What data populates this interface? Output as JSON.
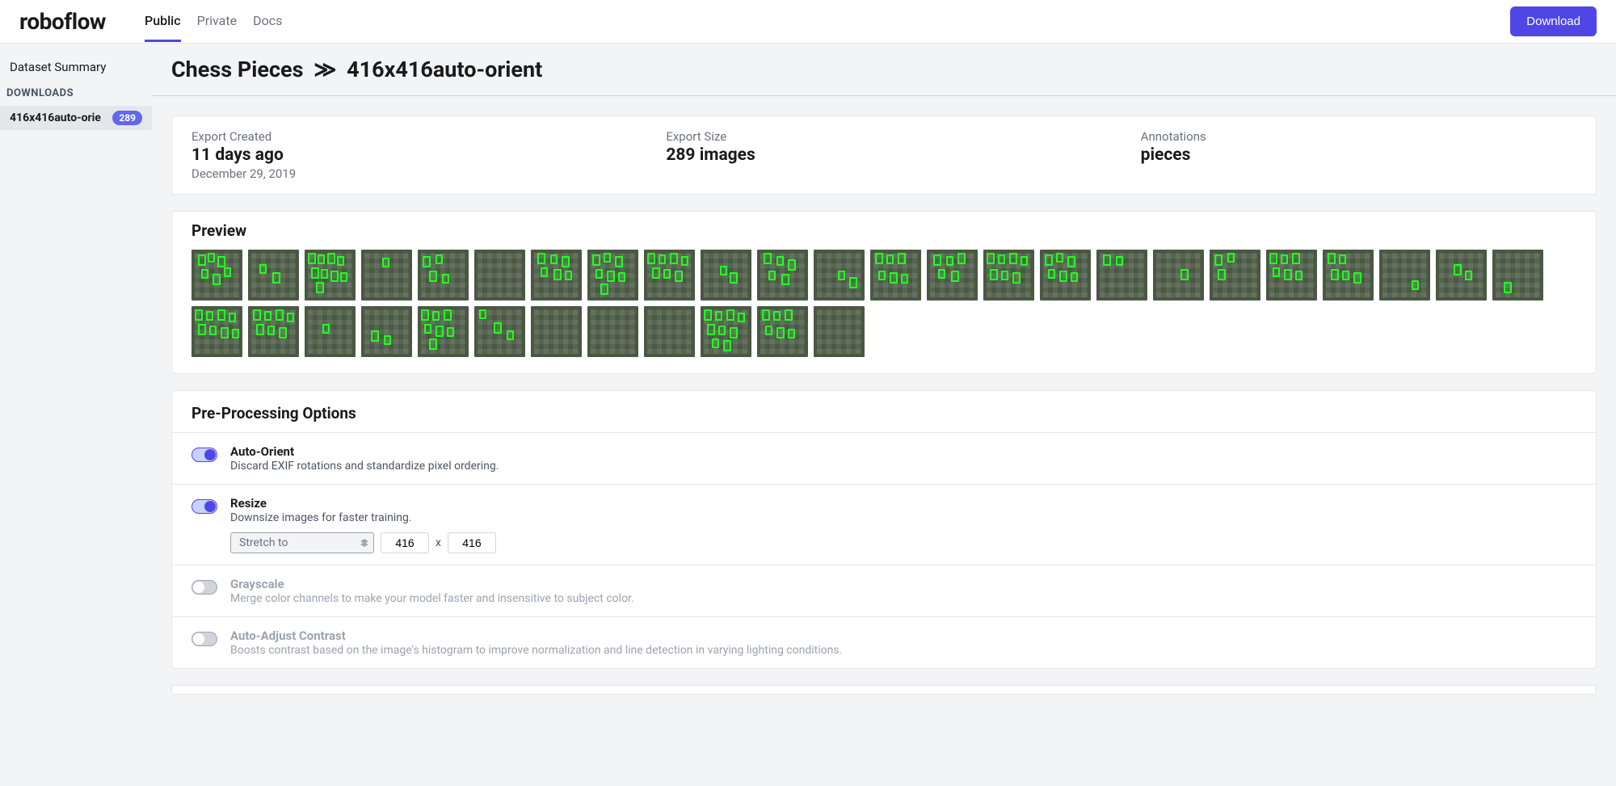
{
  "header": {
    "logo": "roboflow",
    "tabs": [
      {
        "label": "Public",
        "active": true
      },
      {
        "label": "Private",
        "active": false
      },
      {
        "label": "Docs",
        "active": false
      }
    ],
    "download_btn": "Download"
  },
  "sidebar": {
    "summary_label": "Dataset Summary",
    "downloads_heading": "DOWNLOADS",
    "download_item": {
      "label": "416x416auto-orie",
      "badge": "289"
    }
  },
  "title": {
    "dataset": "Chess Pieces",
    "separator": "≫",
    "export": "416x416auto-orient"
  },
  "summary": {
    "created": {
      "label": "Export Created",
      "value": "11 days ago",
      "sub": "December 29, 2019"
    },
    "size": {
      "label": "Export Size",
      "value": "289 images"
    },
    "annotations": {
      "label": "Annotations",
      "value": "pieces"
    }
  },
  "preview": {
    "title": "Preview",
    "thumbs": [
      [
        [
          8,
          6,
          10,
          14
        ],
        [
          20,
          4,
          9,
          12
        ],
        [
          32,
          8,
          10,
          14
        ],
        [
          12,
          24,
          9,
          12
        ],
        [
          26,
          30,
          10,
          14
        ],
        [
          40,
          22,
          9,
          12
        ]
      ],
      [
        [
          14,
          18,
          9,
          12
        ],
        [
          30,
          28,
          10,
          14
        ]
      ],
      [
        [
          4,
          4,
          10,
          14
        ],
        [
          16,
          6,
          9,
          12
        ],
        [
          28,
          4,
          10,
          14
        ],
        [
          40,
          8,
          9,
          12
        ],
        [
          8,
          22,
          10,
          14
        ],
        [
          20,
          24,
          9,
          12
        ],
        [
          32,
          26,
          10,
          14
        ],
        [
          44,
          28,
          9,
          12
        ],
        [
          14,
          40,
          10,
          14
        ]
      ],
      [
        [
          26,
          10,
          9,
          12
        ]
      ],
      [
        [
          6,
          8,
          10,
          14
        ],
        [
          22,
          6,
          9,
          12
        ],
        [
          14,
          26,
          10,
          14
        ],
        [
          30,
          30,
          9,
          12
        ]
      ],
      [],
      [
        [
          8,
          4,
          10,
          14
        ],
        [
          24,
          6,
          9,
          12
        ],
        [
          38,
          8,
          10,
          14
        ],
        [
          12,
          22,
          9,
          12
        ],
        [
          28,
          24,
          10,
          14
        ],
        [
          42,
          26,
          9,
          12
        ]
      ],
      [
        [
          6,
          6,
          10,
          14
        ],
        [
          20,
          4,
          9,
          12
        ],
        [
          34,
          8,
          10,
          14
        ],
        [
          10,
          24,
          9,
          12
        ],
        [
          24,
          26,
          10,
          14
        ],
        [
          38,
          28,
          9,
          12
        ],
        [
          16,
          42,
          10,
          14
        ]
      ],
      [
        [
          4,
          4,
          10,
          14
        ],
        [
          18,
          6,
          9,
          12
        ],
        [
          32,
          4,
          10,
          14
        ],
        [
          46,
          8,
          9,
          12
        ],
        [
          10,
          22,
          10,
          14
        ],
        [
          24,
          24,
          9,
          12
        ],
        [
          38,
          26,
          10,
          14
        ]
      ],
      [
        [
          24,
          20,
          9,
          12
        ],
        [
          36,
          28,
          10,
          14
        ]
      ],
      [
        [
          8,
          4,
          10,
          14
        ],
        [
          24,
          8,
          9,
          12
        ],
        [
          38,
          12,
          10,
          14
        ],
        [
          14,
          26,
          9,
          12
        ],
        [
          30,
          30,
          10,
          14
        ]
      ],
      [
        [
          30,
          26,
          9,
          12
        ],
        [
          44,
          34,
          10,
          14
        ]
      ],
      [
        [
          6,
          4,
          10,
          14
        ],
        [
          20,
          6,
          9,
          12
        ],
        [
          34,
          4,
          10,
          14
        ],
        [
          10,
          26,
          9,
          12
        ],
        [
          24,
          28,
          10,
          14
        ],
        [
          38,
          30,
          9,
          12
        ]
      ],
      [
        [
          8,
          6,
          10,
          14
        ],
        [
          24,
          8,
          9,
          12
        ],
        [
          38,
          4,
          10,
          14
        ],
        [
          14,
          24,
          9,
          12
        ],
        [
          30,
          26,
          10,
          14
        ]
      ],
      [
        [
          4,
          4,
          10,
          14
        ],
        [
          18,
          6,
          9,
          12
        ],
        [
          32,
          4,
          10,
          14
        ],
        [
          46,
          8,
          9,
          12
        ],
        [
          8,
          24,
          10,
          14
        ],
        [
          22,
          26,
          9,
          12
        ],
        [
          36,
          28,
          10,
          14
        ]
      ],
      [
        [
          6,
          6,
          10,
          14
        ],
        [
          20,
          4,
          9,
          12
        ],
        [
          34,
          8,
          10,
          14
        ],
        [
          10,
          24,
          9,
          12
        ],
        [
          24,
          26,
          10,
          14
        ],
        [
          38,
          28,
          9,
          12
        ]
      ],
      [
        [
          8,
          6,
          10,
          14
        ],
        [
          24,
          8,
          9,
          12
        ]
      ],
      [
        [
          34,
          24,
          10,
          14
        ]
      ],
      [
        [
          6,
          6,
          10,
          14
        ],
        [
          22,
          4,
          9,
          12
        ],
        [
          10,
          24,
          10,
          14
        ]
      ],
      [
        [
          4,
          4,
          10,
          14
        ],
        [
          18,
          6,
          9,
          12
        ],
        [
          32,
          4,
          10,
          14
        ],
        [
          8,
          22,
          9,
          12
        ],
        [
          22,
          24,
          10,
          14
        ],
        [
          36,
          26,
          9,
          12
        ]
      ],
      [
        [
          6,
          4,
          10,
          14
        ],
        [
          20,
          6,
          9,
          12
        ],
        [
          10,
          24,
          10,
          14
        ],
        [
          24,
          26,
          9,
          12
        ],
        [
          38,
          28,
          10,
          14
        ]
      ],
      [
        [
          40,
          38,
          9,
          12
        ]
      ],
      [
        [
          22,
          18,
          10,
          14
        ],
        [
          36,
          26,
          9,
          12
        ]
      ],
      [
        [
          14,
          40,
          10,
          14
        ]
      ],
      [
        [
          4,
          4,
          10,
          14
        ],
        [
          18,
          6,
          9,
          12
        ],
        [
          32,
          4,
          10,
          14
        ],
        [
          46,
          8,
          9,
          12
        ],
        [
          8,
          22,
          10,
          14
        ],
        [
          22,
          24,
          9,
          12
        ],
        [
          36,
          26,
          10,
          14
        ],
        [
          50,
          28,
          9,
          12
        ]
      ],
      [
        [
          6,
          4,
          10,
          14
        ],
        [
          20,
          6,
          9,
          12
        ],
        [
          34,
          4,
          10,
          14
        ],
        [
          48,
          8,
          9,
          12
        ],
        [
          10,
          22,
          10,
          14
        ],
        [
          24,
          24,
          9,
          12
        ],
        [
          38,
          26,
          10,
          14
        ]
      ],
      [
        [
          22,
          22,
          9,
          12
        ]
      ],
      [
        [
          12,
          30,
          10,
          14
        ],
        [
          28,
          36,
          9,
          12
        ]
      ],
      [
        [
          4,
          4,
          10,
          14
        ],
        [
          18,
          6,
          9,
          12
        ],
        [
          32,
          4,
          10,
          14
        ],
        [
          8,
          22,
          9,
          12
        ],
        [
          22,
          24,
          10,
          14
        ],
        [
          36,
          26,
          9,
          12
        ],
        [
          14,
          40,
          10,
          14
        ]
      ],
      [
        [
          6,
          4,
          9,
          12
        ],
        [
          24,
          20,
          10,
          14
        ],
        [
          40,
          30,
          9,
          12
        ]
      ],
      [],
      [],
      [],
      [
        [
          4,
          4,
          10,
          14
        ],
        [
          18,
          6,
          9,
          12
        ],
        [
          32,
          4,
          10,
          14
        ],
        [
          46,
          8,
          9,
          12
        ],
        [
          8,
          22,
          10,
          14
        ],
        [
          22,
          24,
          9,
          12
        ],
        [
          36,
          26,
          10,
          14
        ],
        [
          14,
          40,
          9,
          12
        ],
        [
          28,
          42,
          10,
          14
        ]
      ],
      [
        [
          6,
          4,
          10,
          14
        ],
        [
          20,
          6,
          9,
          12
        ],
        [
          34,
          4,
          10,
          14
        ],
        [
          10,
          24,
          9,
          12
        ],
        [
          24,
          26,
          10,
          14
        ],
        [
          38,
          28,
          9,
          12
        ]
      ],
      []
    ]
  },
  "options": {
    "title": "Pre-Processing Options",
    "rows": [
      {
        "name": "Auto-Orient",
        "desc": "Discard EXIF rotations and standardize pixel ordering.",
        "enabled": true
      },
      {
        "name": "Resize",
        "desc": "Downsize images for faster training.",
        "enabled": true,
        "controls": {
          "mode": "Stretch to",
          "w": "416",
          "h": "416",
          "sep": "x"
        }
      },
      {
        "name": "Grayscale",
        "desc": "Merge color channels to make your model faster and insensitive to subject color.",
        "enabled": false
      },
      {
        "name": "Auto-Adjust Contrast",
        "desc": "Boosts contrast based on the image's histogram to improve normalization and line detection in varying lighting conditions.",
        "enabled": false
      }
    ]
  },
  "colors": {
    "accent": "#4f46e5",
    "detection_box": "#22ff22",
    "bg_gray": "#f3f4f6"
  }
}
